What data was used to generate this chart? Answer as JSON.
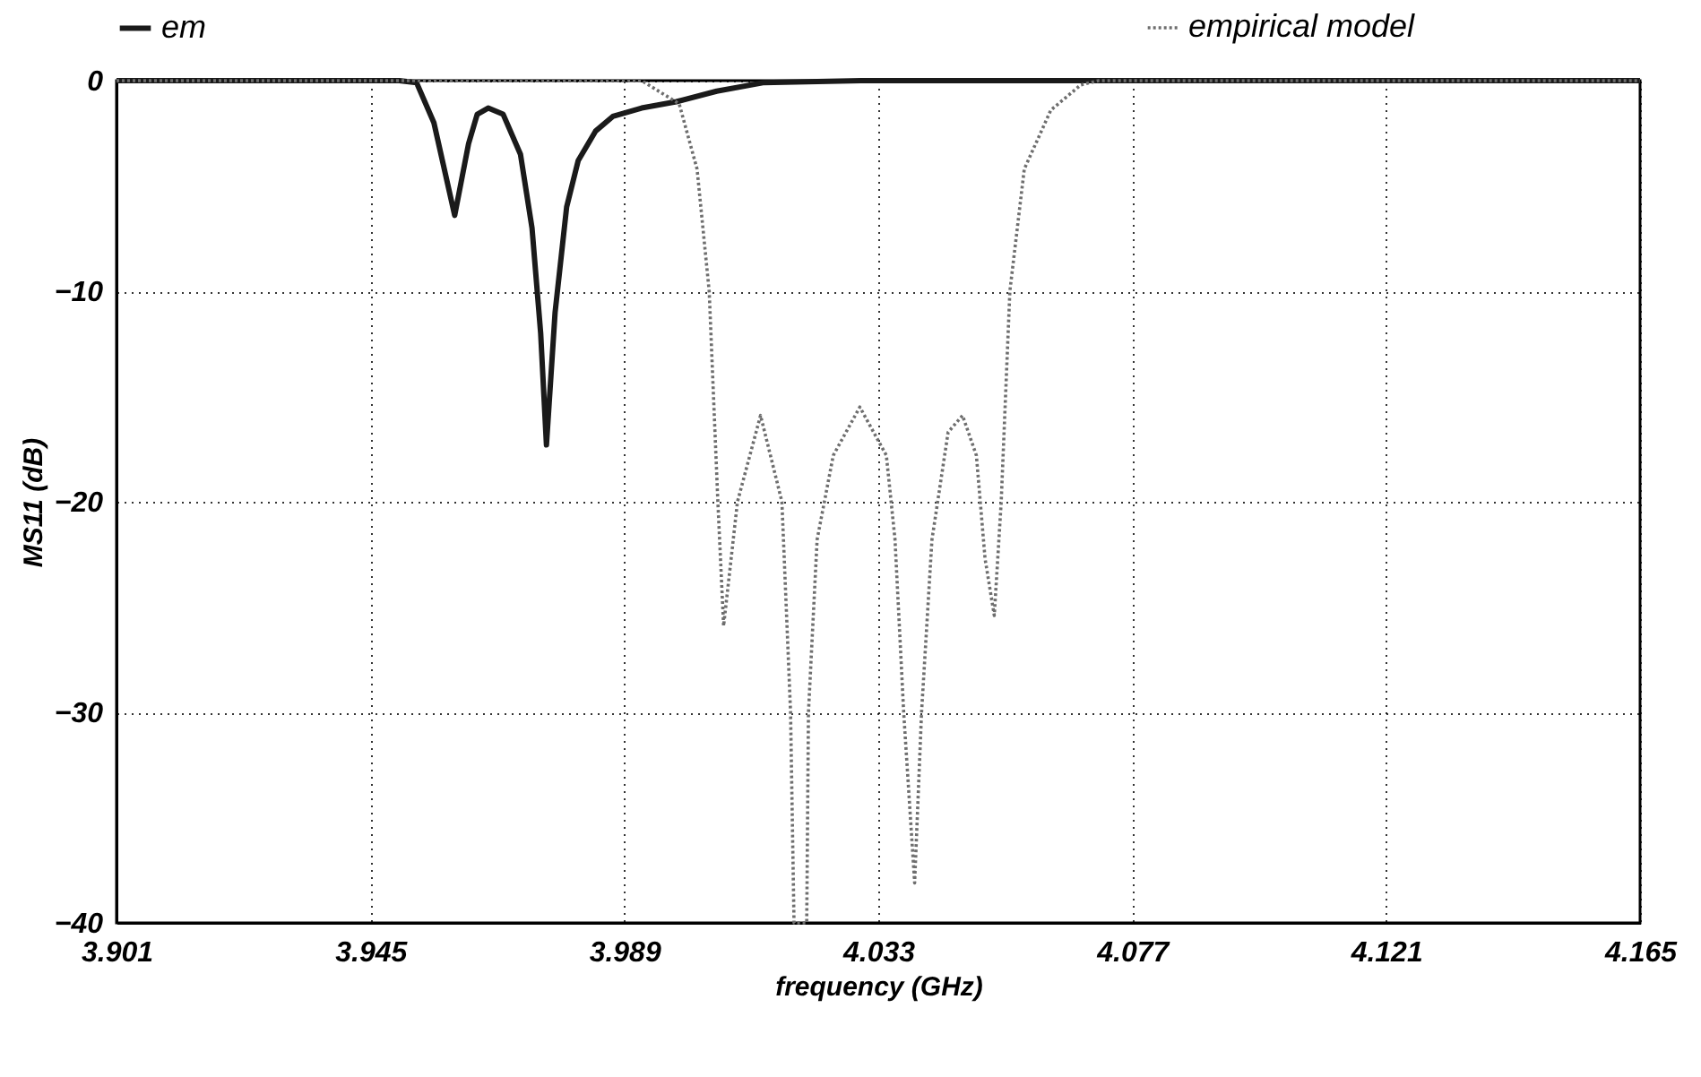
{
  "chart_data": {
    "type": "line",
    "xlabel": "frequency (GHz)",
    "ylabel": "MS11 (dB)",
    "xlim": [
      3.901,
      4.165
    ],
    "xticks": [
      3.901,
      3.945,
      3.989,
      4.033,
      4.077,
      4.121,
      4.165
    ],
    "ylim": [
      -40,
      0
    ],
    "yticks": [
      0,
      -10,
      -20,
      -30,
      -40
    ],
    "grid": true,
    "legend": "top",
    "marker": "none",
    "series": [
      {
        "name": "em",
        "color": "#1a1a1a",
        "line_style": "solid",
        "x": [
          3.901,
          3.95,
          3.953,
          3.956,
          3.9596,
          3.962,
          3.9635,
          3.9654,
          3.968,
          3.971,
          3.973,
          3.9745,
          3.9755,
          3.977,
          3.979,
          3.981,
          3.984,
          3.987,
          3.992,
          3.998,
          4.005,
          4.013,
          4.03,
          4.165
        ],
        "values": [
          0,
          0,
          -0.1,
          -2,
          -6.4,
          -3,
          -1.6,
          -1.3,
          -1.6,
          -3.5,
          -7,
          -12,
          -17.3,
          -11,
          -6,
          -3.8,
          -2.4,
          -1.7,
          -1.3,
          -1.0,
          -0.5,
          -0.1,
          0,
          0
        ]
      },
      {
        "name": "empirical model",
        "color": "#6e6e6e",
        "line_style": "dotted",
        "x": [
          3.901,
          3.992,
          3.9985,
          4.0016,
          4.0037,
          4.0052,
          4.0062,
          4.0086,
          4.0126,
          4.0163,
          4.0178,
          4.0184,
          4.0206,
          4.0209,
          4.0224,
          4.0252,
          4.0298,
          4.0344,
          4.0359,
          4.0374,
          4.0393,
          4.0405,
          4.0423,
          4.0451,
          4.0476,
          4.05,
          4.0515,
          4.0531,
          4.0543,
          4.0558,
          4.0583,
          4.0629,
          4.0681,
          4.0712,
          4.165
        ],
        "values": [
          0,
          0,
          -1.1,
          -4.2,
          -10,
          -20,
          -25.9,
          -20,
          -15.9,
          -20,
          -30,
          -40,
          -40,
          -30,
          -21.8,
          -17.8,
          -15.5,
          -17.8,
          -21.8,
          -30,
          -38.1,
          -30,
          -21.8,
          -16.7,
          -15.9,
          -17.8,
          -22.7,
          -25.4,
          -20,
          -10,
          -4.2,
          -1.4,
          -0.2,
          0,
          0
        ]
      }
    ]
  }
}
